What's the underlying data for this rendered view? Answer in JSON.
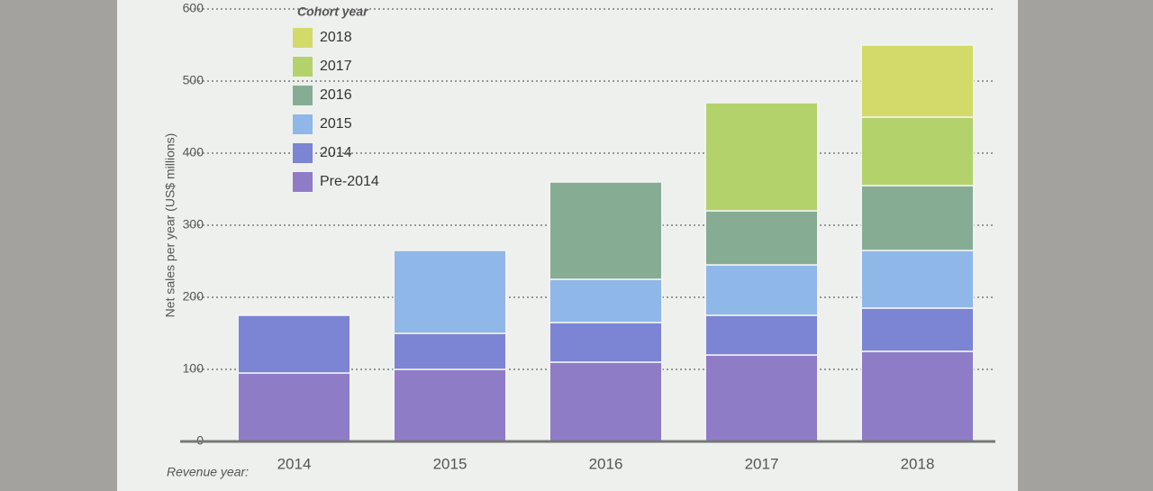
{
  "chart_data": {
    "type": "stacked-bar",
    "y_label": "Net sales per year (US$ millions)",
    "x_label": "Revenue year:",
    "legend_title": "Cohort year",
    "categories": [
      "2014",
      "2015",
      "2016",
      "2017",
      "2018"
    ],
    "series": [
      {
        "name": "Pre-2014",
        "color": "#8f7cc6",
        "values": [
          95,
          100,
          110,
          120,
          125
        ]
      },
      {
        "name": "2014",
        "color": "#7b85d3",
        "values": [
          80,
          50,
          55,
          55,
          60
        ]
      },
      {
        "name": "2015",
        "color": "#8fb7e8",
        "values": [
          null,
          115,
          60,
          70,
          80
        ]
      },
      {
        "name": "2016",
        "color": "#86ad94",
        "values": [
          null,
          null,
          135,
          75,
          90
        ]
      },
      {
        "name": "2017",
        "color": "#b4d26c",
        "values": [
          null,
          null,
          null,
          150,
          95
        ]
      },
      {
        "name": "2018",
        "color": "#d3da6a",
        "values": [
          null,
          null,
          null,
          null,
          100
        ]
      }
    ],
    "ylim": [
      0,
      600
    ],
    "yticks": [
      0,
      100,
      200,
      300,
      400,
      500,
      600
    ],
    "grid": true
  }
}
